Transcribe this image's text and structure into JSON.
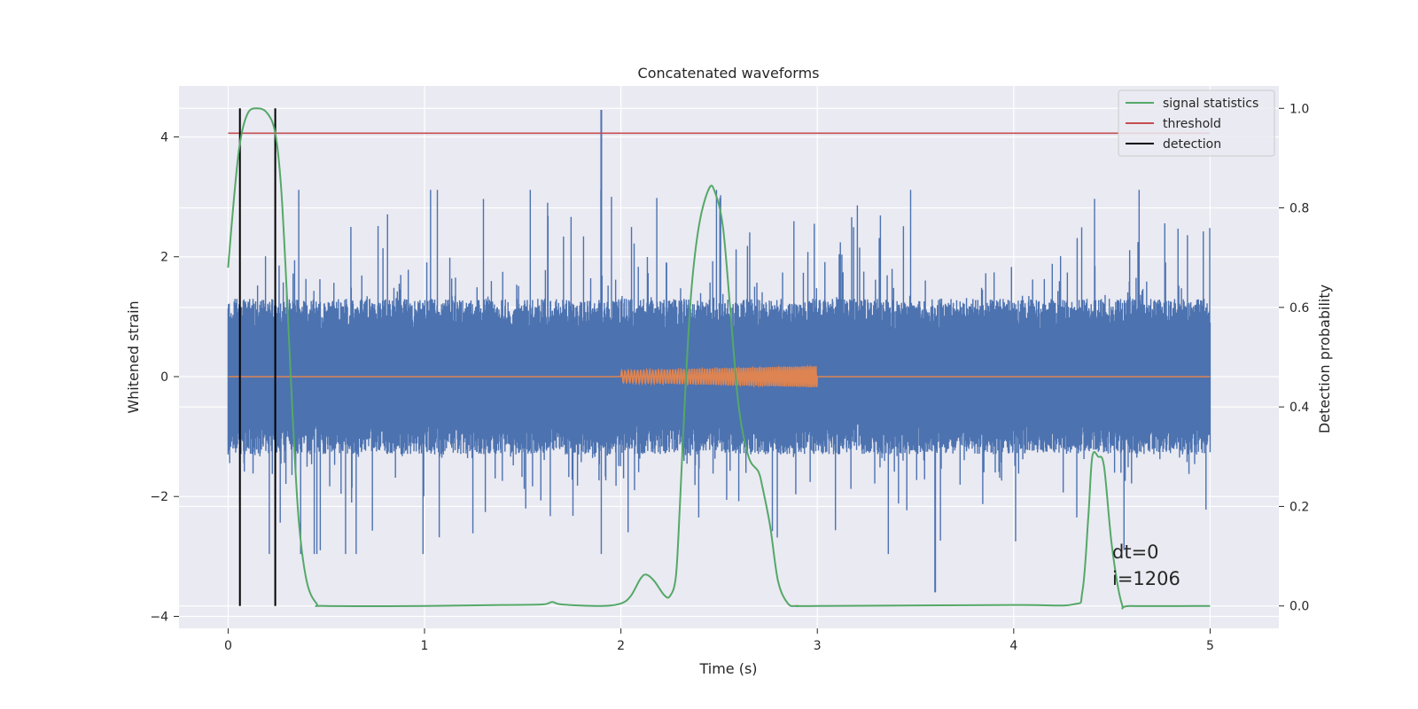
{
  "chart_data": {
    "type": "line",
    "title": "Concatenated waveforms",
    "xlabel": "Time (s)",
    "ylabel": "Whitened strain",
    "ylabel_right": "Detection probability",
    "xlim": [
      -0.25,
      5.35
    ],
    "ylim": [
      -4.2,
      4.85
    ],
    "ylim_right": [
      -0.045,
      1.045
    ],
    "xticks": [
      0,
      1,
      2,
      3,
      4,
      5
    ],
    "yticks": [
      -4,
      -2,
      0,
      2,
      4
    ],
    "yticks_right": [
      0.0,
      0.2,
      0.4,
      0.6,
      0.8,
      1.0
    ],
    "xtick_labels": [
      "0",
      "1",
      "2",
      "3",
      "4",
      "5"
    ],
    "ytick_labels": [
      "−4",
      "−2",
      "0",
      "2",
      "4"
    ],
    "ytick_labels_right": [
      "0.0",
      "0.2",
      "0.4",
      "0.6",
      "0.8",
      "1.0"
    ],
    "grid": true,
    "legend_position": "upper right",
    "legend": [
      {
        "label": "signal statistics",
        "color": "#55a868"
      },
      {
        "label": "threshold",
        "color": "#c44e52"
      },
      {
        "label": "detection",
        "color": "#000000"
      }
    ],
    "annotations": [
      "dt=0",
      "i=1206"
    ],
    "series": [
      {
        "role": "strain-noise",
        "axis": "left",
        "color": "#4c72b0",
        "x_range": [
          0,
          5
        ],
        "typical_band": [
          -1.3,
          1.3
        ],
        "max": 4.45,
        "min": -3.7,
        "spike_maxima_x": [
          1.9,
          3.6
        ],
        "spike_maxima_y": [
          4.45,
          -3.6
        ]
      },
      {
        "role": "injected-signal",
        "axis": "left",
        "color": "#dd8452",
        "x": [
          0,
          2,
          2.5,
          3,
          5
        ],
        "amplitude": [
          0,
          0.1,
          0.13,
          0.18,
          0
        ]
      },
      {
        "name": "signal statistics",
        "axis": "right",
        "color": "#55a868",
        "x": [
          0.0,
          0.03,
          0.06,
          0.1,
          0.15,
          0.2,
          0.24,
          0.27,
          0.3,
          0.33,
          0.36,
          0.4,
          0.45,
          0.5,
          1.0,
          1.4,
          1.6,
          1.65,
          1.7,
          1.9,
          2.0,
          2.05,
          2.1,
          2.13,
          2.17,
          2.22,
          2.25,
          2.28,
          2.3,
          2.33,
          2.36,
          2.4,
          2.45,
          2.48,
          2.52,
          2.56,
          2.6,
          2.65,
          2.7,
          2.72,
          2.76,
          2.8,
          2.85,
          2.9,
          3.0,
          4.0,
          4.3,
          4.35,
          4.38,
          4.4,
          4.43,
          4.46,
          4.5,
          4.55,
          4.6,
          5.0
        ],
        "values": [
          0.68,
          0.82,
          0.93,
          0.99,
          1.0,
          0.99,
          0.95,
          0.84,
          0.62,
          0.37,
          0.17,
          0.05,
          0.005,
          0.0,
          0.0,
          0.002,
          0.003,
          0.008,
          0.003,
          0.0,
          0.005,
          0.02,
          0.055,
          0.063,
          0.05,
          0.022,
          0.02,
          0.06,
          0.2,
          0.45,
          0.64,
          0.77,
          0.84,
          0.83,
          0.76,
          0.58,
          0.4,
          0.3,
          0.27,
          0.24,
          0.16,
          0.05,
          0.005,
          0.0,
          0.0,
          0.002,
          0.003,
          0.03,
          0.18,
          0.3,
          0.3,
          0.28,
          0.12,
          0.005,
          0.0,
          0.0
        ]
      },
      {
        "name": "threshold",
        "axis": "right",
        "color": "#c44e52",
        "x": [
          0,
          5
        ],
        "values": [
          0.95,
          0.95
        ]
      }
    ],
    "detections": {
      "name": "detection",
      "color": "#000000",
      "x": [
        0.06,
        0.24
      ],
      "axis": "right",
      "range": [
        0.0,
        1.0
      ]
    }
  }
}
